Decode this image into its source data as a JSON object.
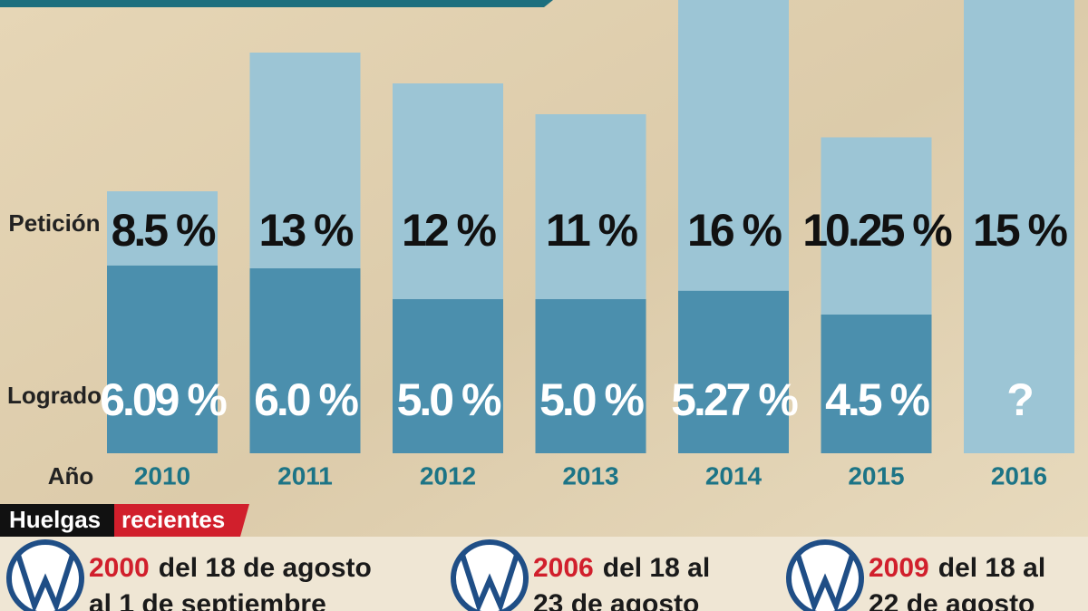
{
  "chart_data": {
    "type": "bar",
    "categories": [
      "2010",
      "2011",
      "2012",
      "2013",
      "2014",
      "2015",
      "2016"
    ],
    "xlabel": "Año",
    "series": [
      {
        "name": "Petición",
        "color": "#9cc5d5",
        "values": [
          8.5,
          13,
          12,
          11,
          16,
          10.25,
          15
        ],
        "value_labels": [
          "8.5 %",
          "13 %",
          "12 %",
          "11 %",
          "16 %",
          "10.25 %",
          "15 %"
        ]
      },
      {
        "name": "Logrado",
        "color": "#4b8fad",
        "values": [
          6.09,
          6.0,
          5.0,
          5.0,
          5.27,
          4.5,
          null
        ],
        "value_labels": [
          "6.09 %",
          "6.0 %",
          "5.0 %",
          "5.0 %",
          "5.27 %",
          "4.5 %",
          "?"
        ]
      }
    ]
  },
  "strikes": {
    "title": "Huelgas",
    "subtitle": "recientes",
    "items": [
      {
        "year": "2000",
        "line1": "del 18 de agosto",
        "line2": "al 1 de septiembre"
      },
      {
        "year": "2006",
        "line1": "del 18 al",
        "line2": "23 de agosto"
      },
      {
        "year": "2009",
        "line1": "del 18 al",
        "line2": "22 de agosto"
      }
    ]
  }
}
